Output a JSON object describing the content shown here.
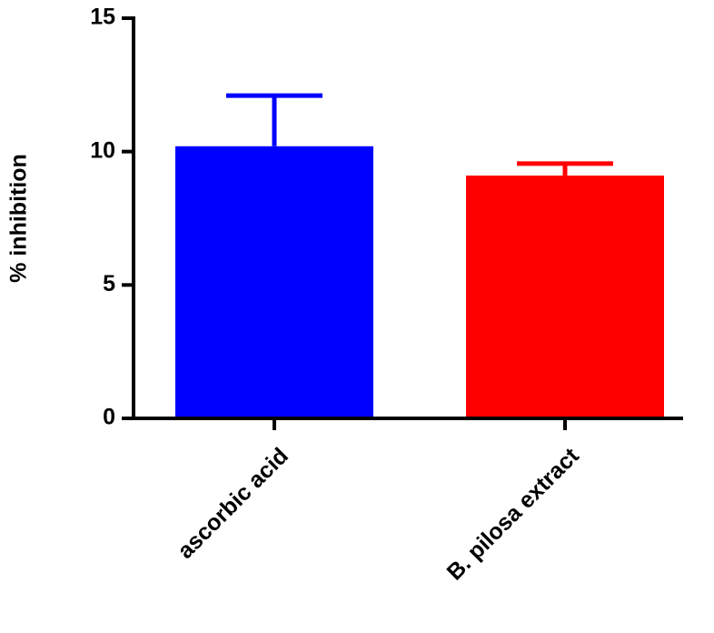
{
  "chart_data": {
    "type": "bar",
    "ylabel": "% inhibition",
    "categories": [
      "ascorbic acid",
      "B. pilosa extract"
    ],
    "values": [
      10.2,
      9.1
    ],
    "errors": [
      1.9,
      0.45
    ],
    "colors": [
      "#0000ff",
      "#ff0000"
    ],
    "ylim": [
      0,
      15
    ],
    "yticks": [
      0,
      5,
      10,
      15
    ]
  }
}
